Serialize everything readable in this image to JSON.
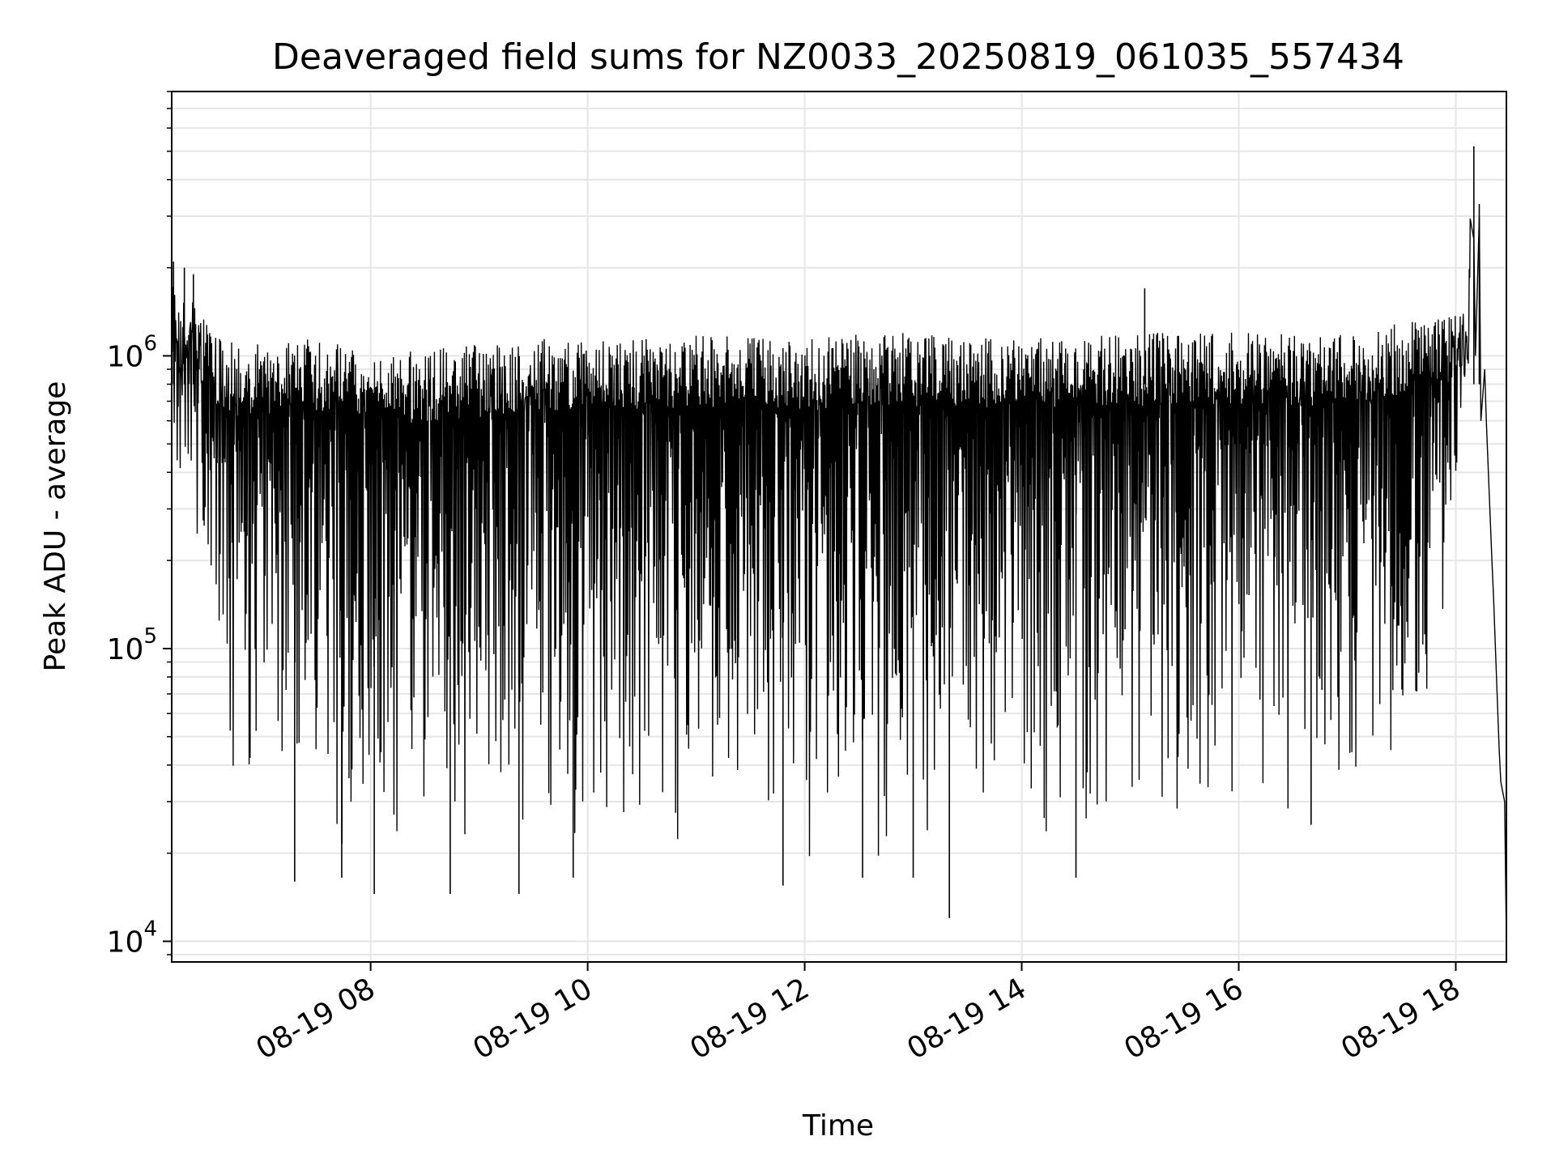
{
  "chart_data": {
    "type": "line",
    "title": "Deaveraged field sums for NZ0033_20250819_061035_557434",
    "xlabel": "Time",
    "ylabel": "Peak ADU - average",
    "yscale": "log",
    "grid": true,
    "line_color": "#000000",
    "grid_color": "#e6e6e6",
    "x_tick_labels": [
      "08-19 08",
      "08-19 10",
      "08-19 12",
      "08-19 14",
      "08-19 16",
      "08-19 18"
    ],
    "x_tick_values": [
      "2025-08-19 08:00",
      "2025-08-19 10:00",
      "2025-08-19 12:00",
      "2025-08-19 14:00",
      "2025-08-19 16:00",
      "2025-08-19 18:00"
    ],
    "xlim": [
      "2025-08-19 06:10",
      "2025-08-19 18:28"
    ],
    "ylim": [
      8500,
      8000000
    ],
    "y_ticks": [
      {
        "value": 10000,
        "base": "10",
        "exp": "4"
      },
      {
        "value": 100000,
        "base": "10",
        "exp": "5"
      },
      {
        "value": 1000000,
        "base": "10",
        "exp": "6"
      }
    ],
    "series": [
      {
        "x": [
          "2025-08-19 06:10",
          "2025-08-19 06:12",
          "2025-08-19 06:15",
          "2025-08-19 06:20",
          "2025-08-19 06:25",
          "2025-08-19 06:30",
          "2025-08-19 06:35",
          "2025-08-19 06:40",
          "2025-08-19 06:45",
          "2025-08-19 06:50",
          "2025-08-19 06:55",
          "2025-08-19 07:00",
          "2025-08-19 07:15",
          "2025-08-19 07:30",
          "2025-08-19 07:45",
          "2025-08-19 08:00",
          "2025-08-19 08:30",
          "2025-08-19 09:00",
          "2025-08-19 09:30",
          "2025-08-19 10:00",
          "2025-08-19 10:30",
          "2025-08-19 11:00",
          "2025-08-19 11:30",
          "2025-08-19 12:00",
          "2025-08-19 12:30",
          "2025-08-19 13:00",
          "2025-08-19 13:30",
          "2025-08-19 14:00",
          "2025-08-19 14:30",
          "2025-08-19 15:00",
          "2025-08-19 15:30",
          "2025-08-19 16:00",
          "2025-08-19 16:30",
          "2025-08-19 17:00",
          "2025-08-19 17:15",
          "2025-08-19 17:30",
          "2025-08-19 17:45",
          "2025-08-19 17:55",
          "2025-08-19 18:00",
          "2025-08-19 18:03",
          "2025-08-19 18:05",
          "2025-08-19 18:07",
          "2025-08-19 18:08",
          "2025-08-19 18:10",
          "2025-08-19 18:13",
          "2025-08-19 18:16",
          "2025-08-19 18:20",
          "2025-08-19 18:24",
          "2025-08-19 18:27"
        ],
        "upper": [
          1800000,
          1900000,
          1500000,
          1600000,
          1500000,
          1300000,
          1200000,
          1150000,
          1100000,
          1100000,
          1100000,
          1100000,
          1150000,
          1150000,
          1100000,
          1050000,
          1050000,
          1100000,
          1150000,
          1150000,
          1150000,
          1200000,
          1150000,
          1150000,
          1200000,
          1200000,
          1150000,
          1150000,
          1150000,
          1200000,
          1200000,
          1200000,
          1200000,
          1200000,
          1250000,
          1300000,
          1350000,
          1400000,
          1450000,
          1400000,
          1450000,
          1600000,
          5000000,
          2500000,
          3000000,
          900000,
          200000,
          45000,
          30000
        ],
        "lower": [
          700000,
          400000,
          300000,
          250000,
          200000,
          100000,
          70000,
          45000,
          30000,
          27000,
          25000,
          24000,
          22000,
          21000,
          20000,
          20000,
          21000,
          22000,
          22000,
          21000,
          19000,
          20000,
          20000,
          19000,
          18000,
          18000,
          20000,
          21000,
          22000,
          23000,
          24000,
          25000,
          26000,
          30000,
          32000,
          35000,
          50000,
          150000,
          300000,
          500000,
          700000,
          800000,
          1000000,
          1000000,
          600000,
          600000,
          150000,
          35000,
          11000
        ],
        "dips": [
          [
            "2025-08-19 07:18",
            16000
          ],
          [
            "2025-08-19 07:44",
            16500
          ],
          [
            "2025-08-19 08:02",
            14500
          ],
          [
            "2025-08-19 08:44",
            14500
          ],
          [
            "2025-08-19 09:22",
            14500
          ],
          [
            "2025-08-19 09:52",
            16500
          ],
          [
            "2025-08-19 11:48",
            15500
          ],
          [
            "2025-08-19 12:32",
            16500
          ],
          [
            "2025-08-19 13:00",
            16500
          ],
          [
            "2025-08-19 13:20",
            12000
          ],
          [
            "2025-08-19 14:30",
            16500
          ],
          [
            "2025-08-19 16:40",
            25000
          ]
        ],
        "spikes": [
          [
            "2025-08-19 06:11",
            2100000
          ],
          [
            "2025-08-19 06:17",
            2000000
          ],
          [
            "2025-08-19 06:22",
            1900000
          ],
          [
            "2025-08-19 15:08",
            1700000
          ],
          [
            "2025-08-19 18:10",
            5200000
          ],
          [
            "2025-08-19 18:13",
            3300000
          ]
        ]
      }
    ]
  }
}
